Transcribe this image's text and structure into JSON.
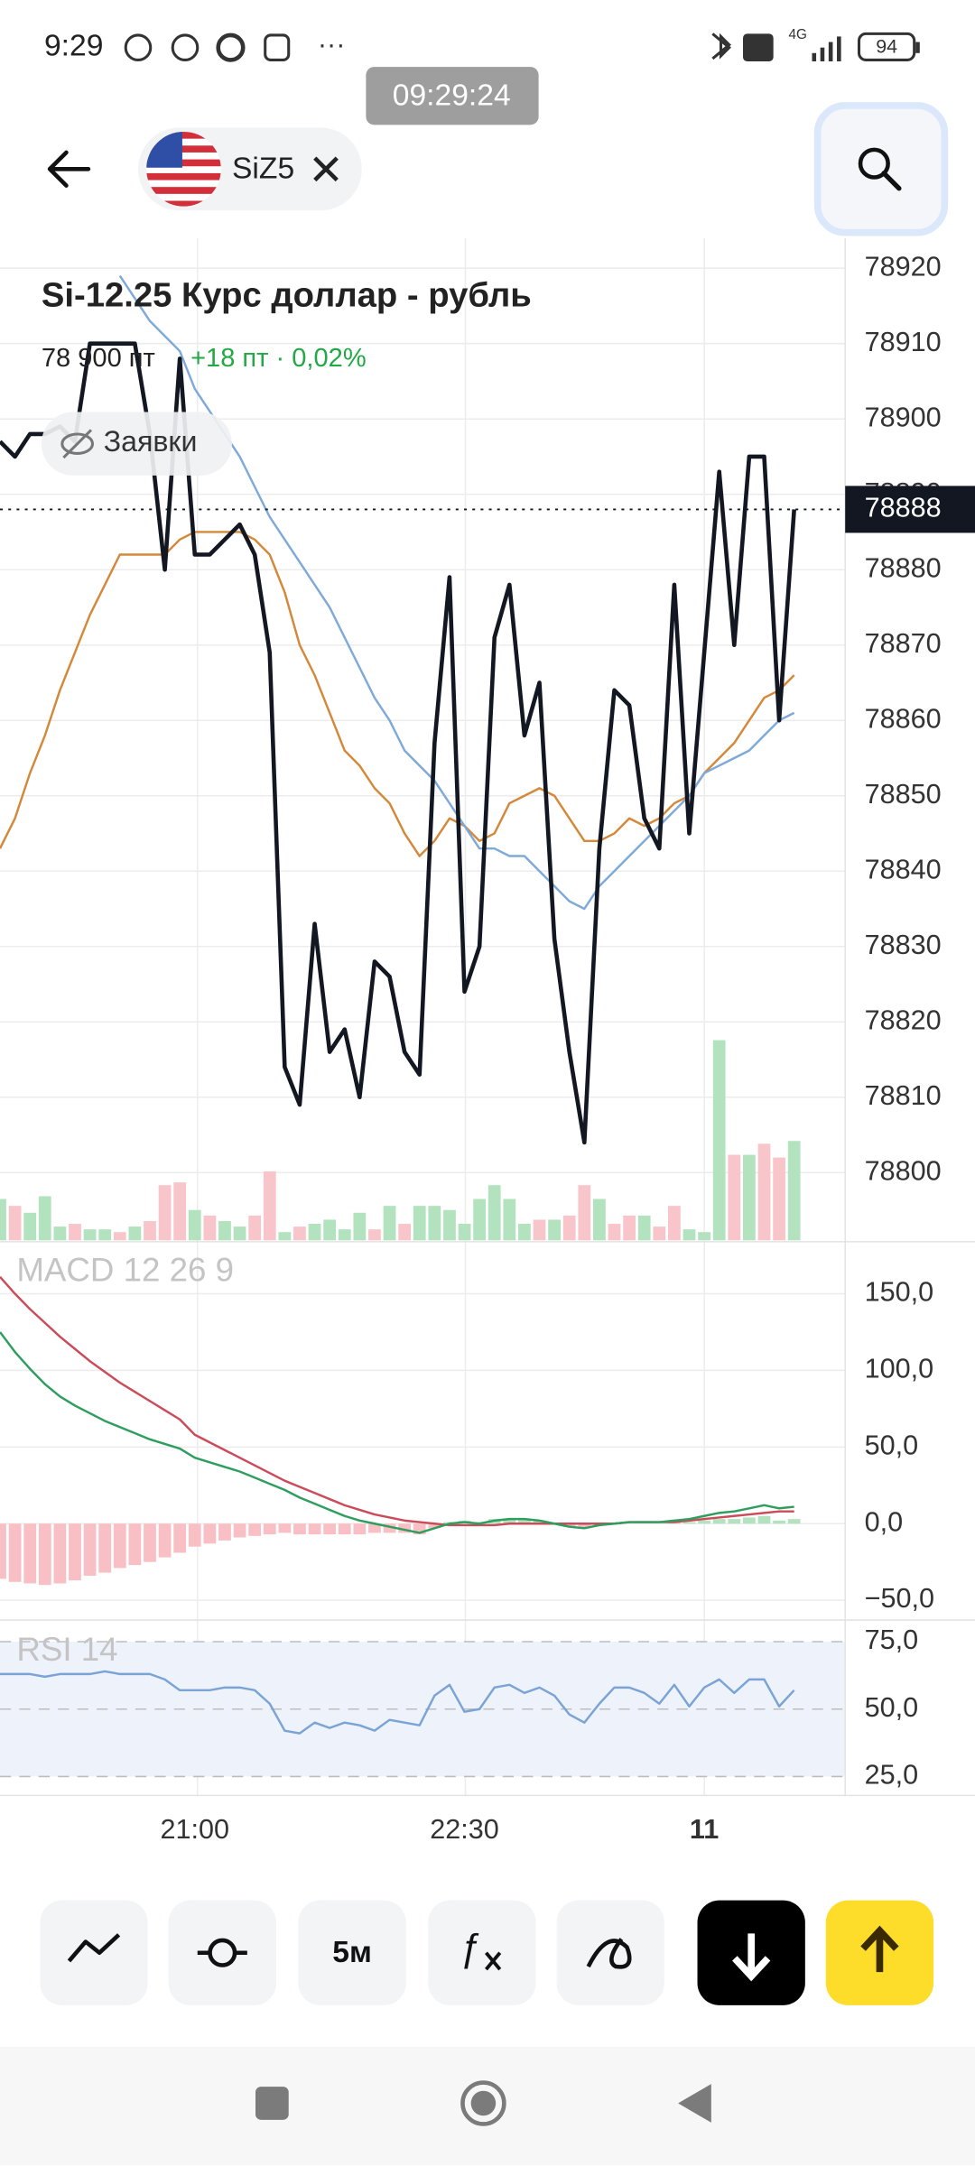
{
  "status_bar": {
    "time": "9:29",
    "network": "4G",
    "battery": "94"
  },
  "time_badge": "09:29:24",
  "header": {
    "ticker": "SiZ5"
  },
  "instrument": {
    "title": "Si-12.25 Курс доллар - рубль",
    "price": "78 900 пт",
    "change": "+18 пт · 0,02%",
    "orders_button": "Заявки"
  },
  "toolbar": {
    "interval": "5м"
  },
  "chart_data": [
    {
      "type": "line",
      "categories": [
        null,
        null,
        null,
        null,
        null,
        null,
        null,
        null,
        null,
        null,
        null,
        null,
        null,
        "21:00",
        null,
        null,
        null,
        null,
        null,
        null,
        null,
        null,
        null,
        null,
        null,
        null,
        null,
        null,
        null,
        null,
        null,
        "22:30",
        null,
        null,
        null,
        null,
        null,
        null,
        null,
        null,
        null,
        null,
        null,
        null,
        null,
        null,
        null,
        "11",
        null,
        null,
        null,
        null,
        null,
        null
      ],
      "series": [
        {
          "color": "#d4883a",
          "values": [
            78843,
            78847,
            78853,
            78858,
            78864,
            78869,
            78874,
            78878,
            78882,
            78882,
            78882,
            78882,
            78884,
            78885,
            78885,
            78885,
            78885,
            78884,
            78882,
            78877,
            78870,
            78866,
            78861,
            78856,
            78854,
            78851,
            78849,
            78845,
            78842,
            78844,
            78847,
            78846,
            78844,
            78845,
            78849,
            78850,
            78851,
            78850,
            78847,
            78844,
            78844,
            78845,
            78847,
            78846,
            78847,
            78849,
            78850,
            78853,
            78855,
            78857,
            78860,
            78863,
            78864,
            78866
          ]
        },
        {
          "color": "#7fa9d9",
          "values": [
            null,
            null,
            null,
            null,
            null,
            null,
            null,
            null,
            78919,
            78916,
            78913,
            78911,
            78909,
            78904,
            78901,
            78898,
            78895,
            78891,
            78887,
            78884,
            78881,
            78878,
            78875,
            78871,
            78867,
            78863,
            78860,
            78856,
            78854,
            78852,
            78849,
            78846,
            78843,
            78843,
            78842,
            78842,
            78840,
            78838,
            78836,
            78835,
            78838,
            78840,
            78842,
            78844,
            78846,
            78848,
            78850,
            78853,
            78854,
            78855,
            78856,
            78858,
            78860,
            78861
          ]
        },
        {
          "color": "#131722",
          "values": [
            78897,
            78895,
            78898,
            78898,
            78899,
            78897,
            78910,
            78910,
            78910,
            78910,
            78898,
            78880,
            78908,
            78882,
            78882,
            78884,
            78886,
            78882,
            78869,
            78814,
            78809,
            78833,
            78816,
            78819,
            78810,
            78828,
            78826,
            78816,
            78813,
            78857,
            78879,
            78824,
            78830,
            78871,
            78878,
            78858,
            78865,
            78831,
            78816,
            78804,
            78843,
            78864,
            78862,
            78847,
            78843,
            78878,
            78845,
            78869,
            78893,
            78870,
            78895,
            78895,
            78860,
            78888
          ]
        }
      ],
      "ylim": [
        78791,
        78924
      ],
      "yticks": [
        78800,
        78810,
        78820,
        78830,
        78840,
        78850,
        78860,
        78870,
        78880,
        78890,
        78900,
        78910,
        78920
      ],
      "grid": true,
      "last_price": 78888,
      "volume": {
        "values": [
          30,
          25,
          20,
          32,
          10,
          12,
          8,
          8,
          6,
          10,
          14,
          40,
          42,
          22,
          18,
          14,
          10,
          18,
          50,
          6,
          10,
          12,
          15,
          8,
          20,
          8,
          25,
          12,
          25,
          25,
          22,
          12,
          30,
          40,
          30,
          12,
          15,
          15,
          18,
          40,
          30,
          12,
          18,
          18,
          10,
          25,
          8,
          6,
          145,
          62,
          62,
          70,
          60,
          72
        ],
        "up": [
          true,
          false,
          true,
          true,
          true,
          false,
          true,
          true,
          false,
          true,
          false,
          false,
          false,
          true,
          false,
          true,
          true,
          false,
          false,
          true,
          false,
          true,
          true,
          true,
          true,
          false,
          true,
          false,
          true,
          true,
          true,
          true,
          true,
          true,
          true,
          true,
          false,
          true,
          false,
          false,
          true,
          false,
          false,
          true,
          false,
          false,
          true,
          true,
          true,
          false,
          true,
          false,
          false,
          true
        ],
        "up_color": "#b3e2bf",
        "down_color": "#f8c6ca",
        "lim": [
          0,
          160
        ]
      }
    },
    {
      "type": "line",
      "title": "MACD 12 26 9",
      "series": [
        {
          "color": "#cc4b5a",
          "values": [
            161,
            150,
            140,
            131,
            122,
            114,
            106,
            99,
            92,
            86,
            80,
            74,
            68,
            58,
            53,
            48,
            43,
            38,
            33,
            28,
            24,
            20,
            16,
            12,
            9,
            6,
            4,
            2,
            1,
            0,
            -1,
            -1,
            -1,
            -1,
            0,
            0,
            0,
            0,
            0,
            0,
            0,
            0,
            1,
            1,
            1,
            1,
            2,
            3,
            4,
            5,
            6,
            7,
            8,
            8
          ]
        },
        {
          "color": "#2e9e5e",
          "values": [
            125,
            112,
            101,
            91,
            83,
            77,
            72,
            67,
            63,
            59,
            55,
            52,
            49,
            43,
            40,
            37,
            34,
            30,
            26,
            22,
            17,
            13,
            9,
            5,
            2,
            0,
            -2,
            -4,
            -6,
            -3,
            0,
            1,
            0,
            2,
            3,
            3,
            2,
            0,
            -2,
            -3,
            -1,
            0,
            1,
            1,
            1,
            2,
            3,
            5,
            7,
            8,
            10,
            12,
            10,
            11
          ]
        }
      ],
      "histogram": {
        "values": [
          -36,
          -38,
          -39,
          -40,
          -39,
          -37,
          -34,
          -32,
          -29,
          -27,
          -25,
          -22,
          -19,
          -15,
          -13,
          -11,
          -9,
          -8,
          -7,
          -6,
          -7,
          -7,
          -7,
          -7,
          -7,
          -6,
          -6,
          -6,
          -7,
          -3,
          1,
          2,
          1,
          3,
          3,
          3,
          2,
          0,
          -2,
          -3,
          -1,
          0,
          0,
          0,
          0,
          1,
          1,
          2,
          3,
          3,
          4,
          5,
          2,
          3
        ],
        "up_color": "#b3e2bf",
        "down_color": "#f8c0c4"
      },
      "ylim": [
        -62,
        183
      ],
      "yticks": [
        {
          "value": 150,
          "label": "150,0"
        },
        {
          "value": 100,
          "label": "100,0"
        },
        {
          "value": 50,
          "label": "50,0"
        },
        {
          "value": 0,
          "label": "0,0"
        },
        {
          "value": -50,
          "label": "−50,0"
        }
      ],
      "grid": true
    },
    {
      "type": "line",
      "title": "RSI 14",
      "series": [
        {
          "color": "#7aa3d6",
          "values": [
            63,
            63,
            63,
            62,
            63,
            63,
            63,
            64,
            63,
            63,
            63,
            61,
            57,
            57,
            57,
            58,
            58,
            57,
            52,
            42,
            41,
            45,
            43,
            45,
            44,
            42,
            46,
            45,
            44,
            55,
            59,
            49,
            50,
            58,
            59,
            56,
            58,
            55,
            48,
            45,
            52,
            58,
            58,
            56,
            52,
            59,
            51,
            58,
            61,
            56,
            61,
            61,
            51,
            57
          ]
        }
      ],
      "ylim": [
        18,
        82
      ],
      "yticks": [
        {
          "value": 75,
          "label": "75,0"
        },
        {
          "value": 50,
          "label": "50,0"
        },
        {
          "value": 25,
          "label": "25,0"
        }
      ],
      "grid": "dashed",
      "band": true
    }
  ]
}
